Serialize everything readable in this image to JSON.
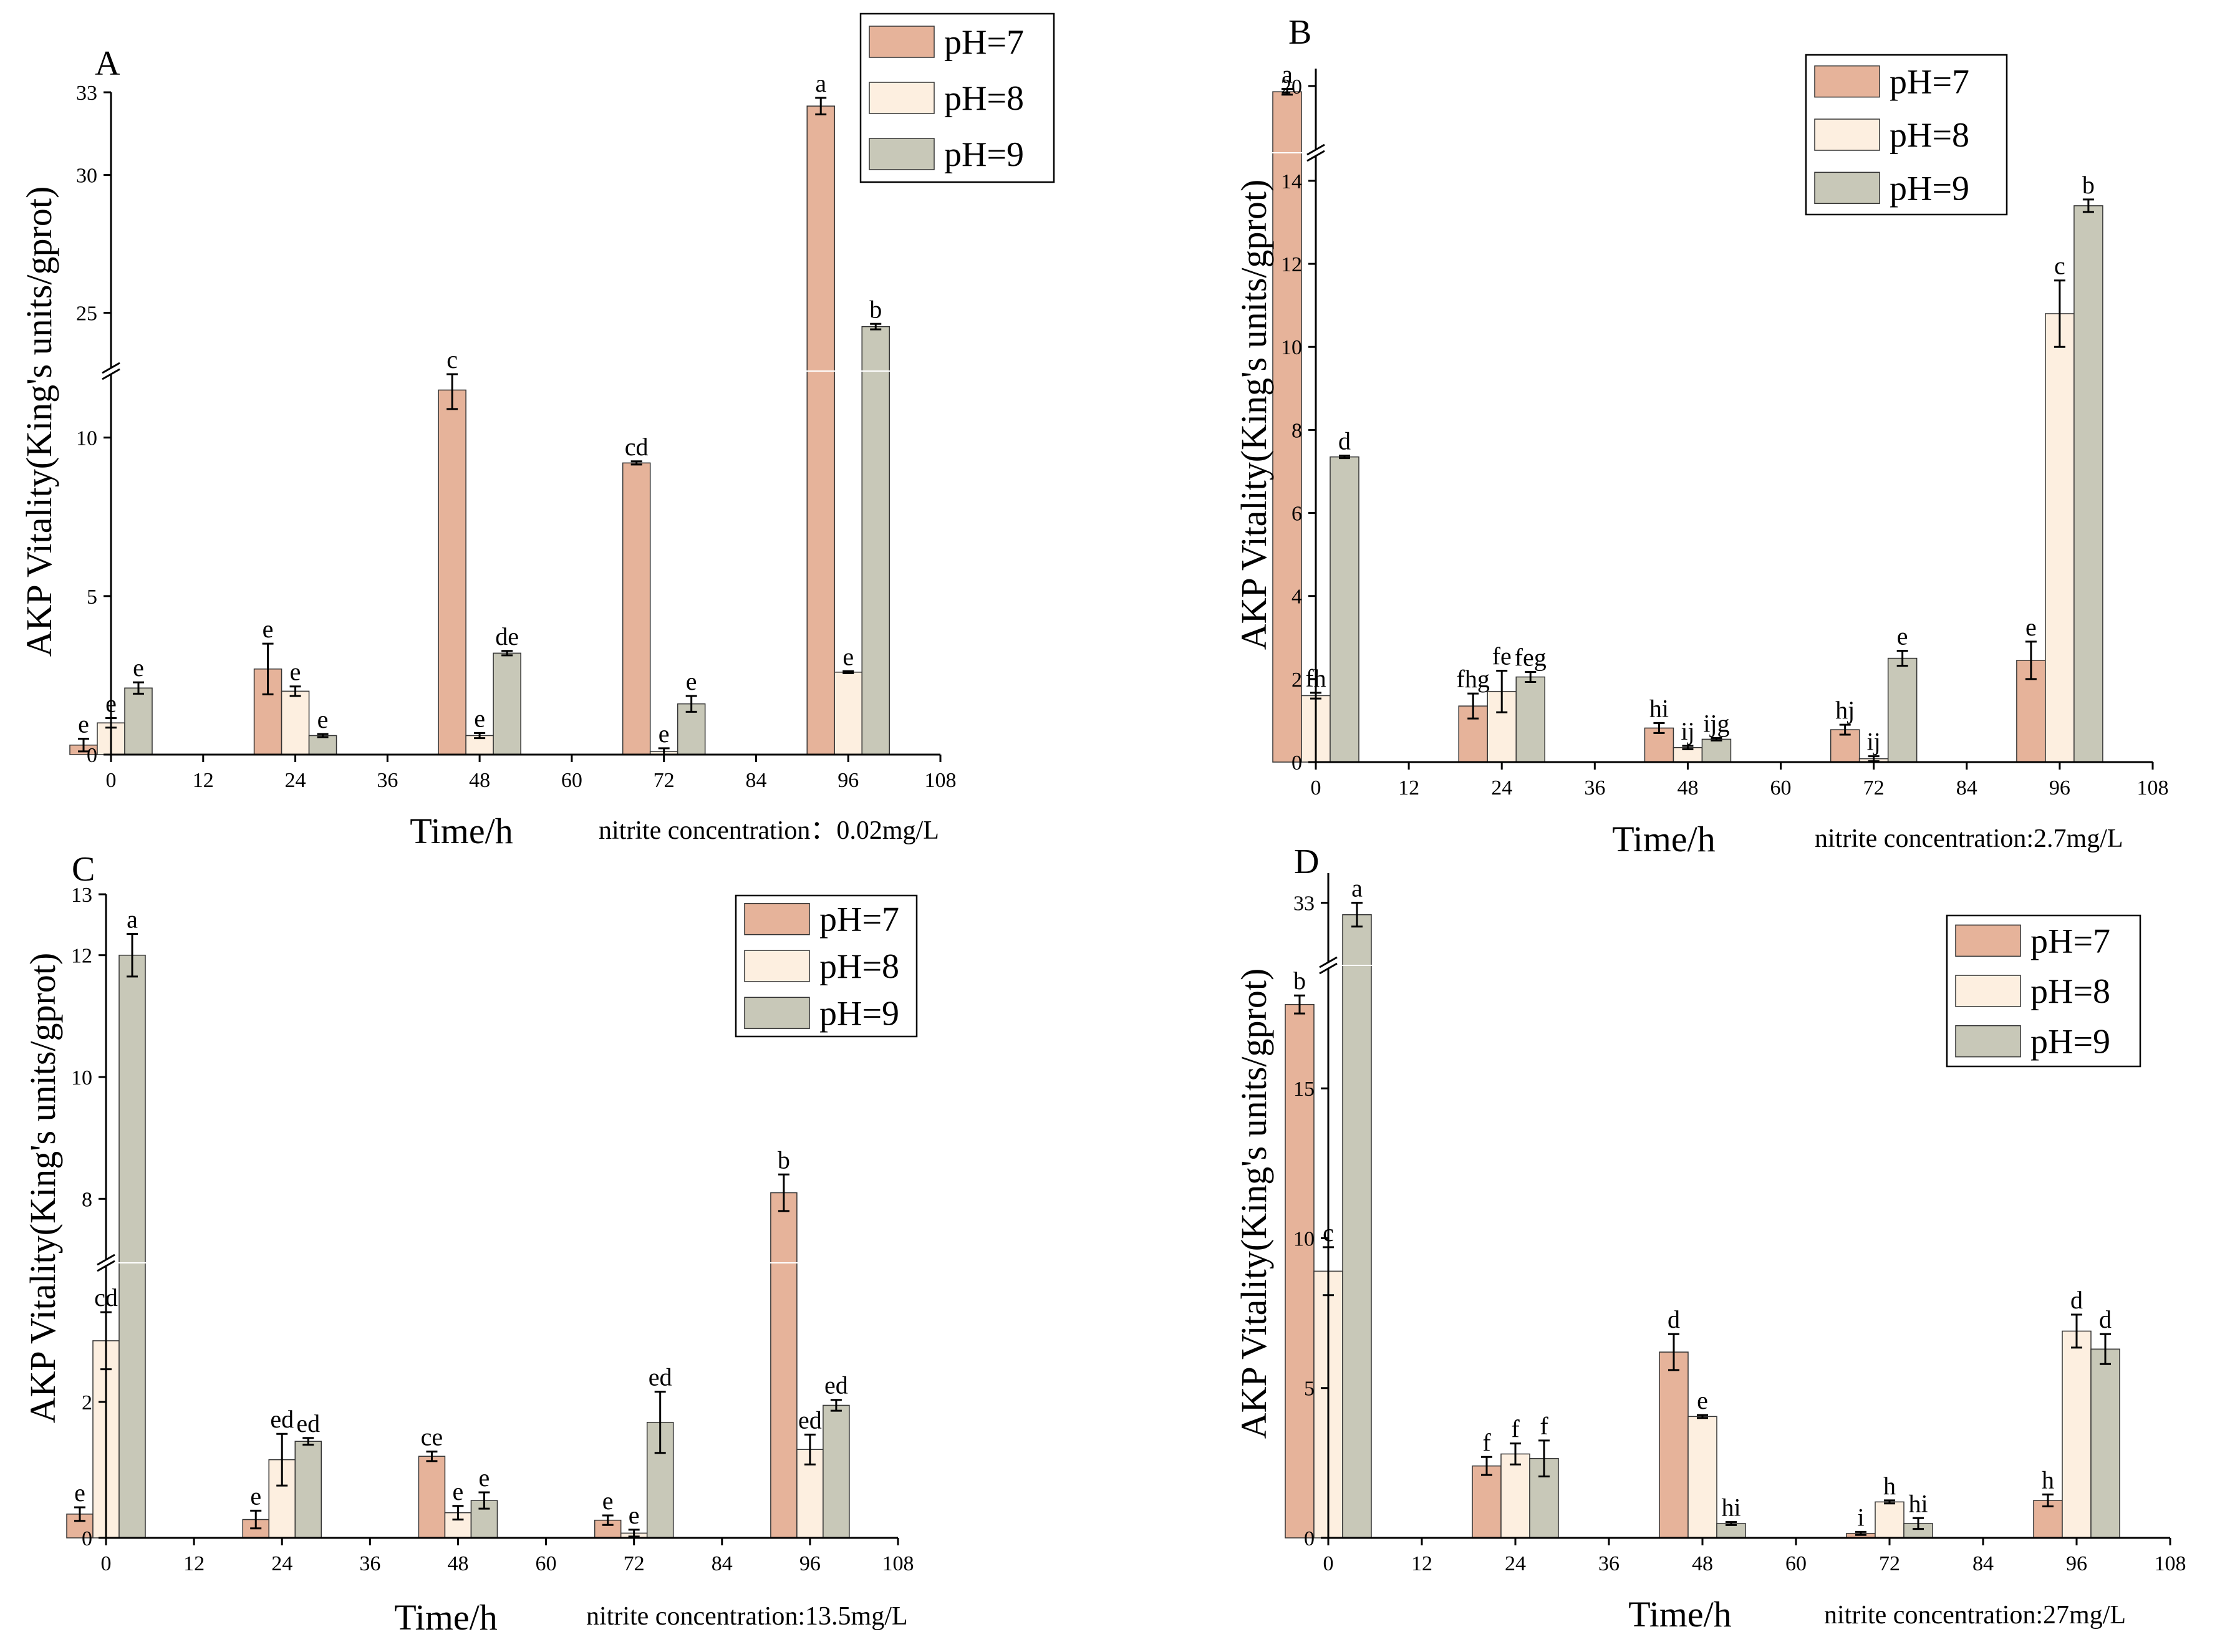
{
  "chart_data": [
    {
      "type": "bar",
      "panel": "A",
      "xlabel": "Time/h",
      "ylabel": "AKP Vitality(King's units/gprot)",
      "note": "nitrite concentration：0.02mg/L",
      "x_ticks": [
        "0",
        "12",
        "24",
        "36",
        "48",
        "60",
        "72",
        "84",
        "96",
        "108"
      ],
      "categories": [
        "0",
        "24",
        "48",
        "72",
        "96"
      ],
      "y_axis_break": {
        "lower_range": [
          0,
          12
        ],
        "upper_range": [
          23,
          33
        ]
      },
      "y_ticks": [
        "0",
        "5",
        "10",
        "25",
        "30",
        "33"
      ],
      "legend_position": "top-right",
      "series": [
        {
          "name": "pH=7",
          "color": "#e6b39a",
          "values": [
            0.3,
            2.7,
            11.5,
            9.2,
            32.5
          ],
          "errors": [
            0.2,
            0.8,
            0.6,
            0.05,
            0.3
          ],
          "letters": [
            "e",
            "e",
            "c",
            "cd",
            "a"
          ]
        },
        {
          "name": "pH=8",
          "color": "#fdefe0",
          "values": [
            1.0,
            2.0,
            0.6,
            0.1,
            2.6
          ],
          "errors": [
            0.15,
            0.15,
            0.08,
            0.1,
            0.03
          ],
          "letters": [
            "e",
            "e",
            "e",
            "e",
            "e"
          ]
        },
        {
          "name": "pH=9",
          "color": "#c8c8b8",
          "values": [
            2.1,
            0.6,
            3.2,
            1.6,
            24.5
          ],
          "errors": [
            0.18,
            0.05,
            0.07,
            0.25,
            0.1
          ],
          "letters": [
            "e",
            "e",
            "de",
            "e",
            "b"
          ]
        }
      ]
    },
    {
      "type": "bar",
      "panel": "B",
      "xlabel": "Time/h",
      "ylabel": "AKP Vitality(King's units/gprot)",
      "note": "nitrite concentration:2.7mg/L",
      "x_ticks": [
        "0",
        "12",
        "24",
        "36",
        "48",
        "60",
        "72",
        "84",
        "96",
        "108"
      ],
      "categories": [
        "0",
        "24",
        "48",
        "72",
        "96"
      ],
      "y_axis_break": {
        "lower_range": [
          0,
          14.6
        ],
        "upper_range": [
          18.9,
          20.3
        ]
      },
      "y_ticks": [
        "0",
        "2",
        "4",
        "6",
        "8",
        "10",
        "12",
        "14",
        "20"
      ],
      "legend_position": "top-right",
      "series": [
        {
          "name": "pH=7",
          "color": "#e6b39a",
          "values": [
            19.9,
            1.35,
            0.82,
            0.78,
            2.45
          ],
          "errors": [
            0.05,
            0.3,
            0.12,
            0.12,
            0.45
          ],
          "letters": [
            "a",
            "fhg",
            "hi",
            "hj",
            "e"
          ]
        },
        {
          "name": "pH=8",
          "color": "#fdefe0",
          "values": [
            1.6,
            1.7,
            0.35,
            0.08,
            10.8
          ],
          "errors": [
            0.07,
            0.5,
            0.04,
            0.06,
            0.8
          ],
          "letters": [
            "fh",
            "fe",
            "ij",
            "ij",
            "c"
          ]
        },
        {
          "name": "pH=9",
          "color": "#c8c8b8",
          "values": [
            7.35,
            2.05,
            0.55,
            2.5,
            13.4
          ],
          "errors": [
            0.03,
            0.12,
            0.03,
            0.18,
            0.15
          ],
          "letters": [
            "d",
            "feg",
            "ijg",
            "e",
            "b"
          ]
        }
      ]
    },
    {
      "type": "bar",
      "panel": "C",
      "xlabel": "Time/h",
      "ylabel": "AKP Vitality(King's units/gprot)",
      "note": "nitrite concentration:13.5mg/L",
      "x_ticks": [
        "0",
        "12",
        "24",
        "36",
        "48",
        "60",
        "72",
        "84",
        "96",
        "108"
      ],
      "categories": [
        "0",
        "24",
        "48",
        "72",
        "96"
      ],
      "y_axis_break": {
        "lower_range": [
          0,
          4
        ],
        "upper_range": [
          7,
          13
        ]
      },
      "y_ticks": [
        "0",
        "2",
        "8",
        "10",
        "12",
        "13"
      ],
      "legend_position": "top-right",
      "series": [
        {
          "name": "pH=7",
          "color": "#e6b39a",
          "values": [
            0.35,
            0.27,
            1.2,
            0.26,
            8.1
          ],
          "errors": [
            0.1,
            0.13,
            0.07,
            0.07,
            0.3
          ],
          "letters": [
            "e",
            "e",
            "ce",
            "e",
            "b"
          ]
        },
        {
          "name": "pH=8",
          "color": "#fdefe0",
          "values": [
            2.9,
            1.15,
            0.37,
            0.07,
            1.3
          ],
          "errors": [
            0.42,
            0.38,
            0.1,
            0.05,
            0.22
          ],
          "letters": [
            "cd",
            "ed",
            "e",
            "e",
            "ed"
          ]
        },
        {
          "name": "pH=9",
          "color": "#c8c8b8",
          "values": [
            12.0,
            1.42,
            0.55,
            1.7,
            1.95
          ],
          "errors": [
            0.35,
            0.05,
            0.12,
            0.45,
            0.08
          ],
          "letters": [
            "a",
            "ed",
            "e",
            "ed",
            "ed"
          ]
        }
      ]
    },
    {
      "type": "bar",
      "panel": "D",
      "xlabel": "Time/h",
      "ylabel": "AKP Vitality(King's units/gprot)",
      "note": "nitrite concentration:27mg/L",
      "x_ticks": [
        "0",
        "12",
        "24",
        "36",
        "48",
        "60",
        "72",
        "84",
        "96",
        "108"
      ],
      "categories": [
        "0",
        "24",
        "48",
        "72",
        "96"
      ],
      "y_axis_break": {
        "lower_range": [
          0,
          19
        ],
        "upper_range": [
          32,
          33.5
        ]
      },
      "y_ticks": [
        "0",
        "5",
        "10",
        "15",
        "33"
      ],
      "legend_position": "top-right",
      "series": [
        {
          "name": "pH=7",
          "color": "#e6b39a",
          "values": [
            17.8,
            2.4,
            6.2,
            0.15,
            1.25
          ],
          "errors": [
            0.3,
            0.3,
            0.6,
            0.05,
            0.2
          ],
          "letters": [
            "b",
            "f",
            "d",
            "i",
            "h"
          ]
        },
        {
          "name": "pH=8",
          "color": "#fdefe0",
          "values": [
            8.9,
            2.8,
            4.05,
            1.2,
            6.9
          ],
          "errors": [
            0.8,
            0.35,
            0.05,
            0.05,
            0.55
          ],
          "letters": [
            "c",
            "f",
            "e",
            "h",
            "d"
          ]
        },
        {
          "name": "pH=9",
          "color": "#c8c8b8",
          "values": [
            32.8,
            2.65,
            0.48,
            0.48,
            6.3
          ],
          "errors": [
            0.2,
            0.6,
            0.05,
            0.18,
            0.5
          ],
          "letters": [
            "a",
            "f",
            "hi",
            "hi",
            "d"
          ]
        }
      ]
    }
  ]
}
